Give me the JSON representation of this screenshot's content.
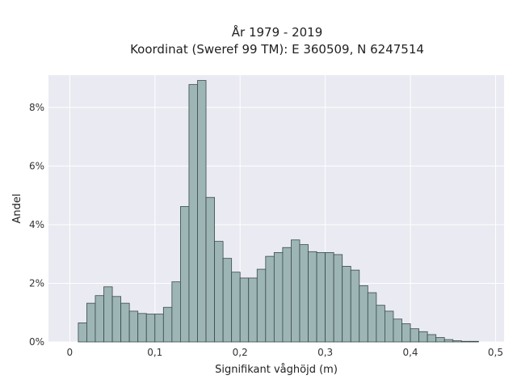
{
  "chart_data": {
    "type": "bar",
    "title": "År 1979 - 2019",
    "subtitle": "Koordinat (Sweref 99 TM): E 360509, N 6247514",
    "xlabel": "Signifikant våghöjd (m)",
    "ylabel": "Andel",
    "xlim": [
      -0.025,
      0.51
    ],
    "ylim": [
      0,
      9.1
    ],
    "grid": true,
    "legend": "none",
    "x_ticks": [
      {
        "value": 0,
        "label": "0"
      },
      {
        "value": 0.1,
        "label": "0,1"
      },
      {
        "value": 0.2,
        "label": "0,2"
      },
      {
        "value": 0.3,
        "label": "0,3"
      },
      {
        "value": 0.4,
        "label": "0,4"
      },
      {
        "value": 0.5,
        "label": "0,5"
      }
    ],
    "y_ticks": [
      {
        "value": 0,
        "label": "0%"
      },
      {
        "value": 2,
        "label": "2%"
      },
      {
        "value": 4,
        "label": "4%"
      },
      {
        "value": 6,
        "label": "6%"
      },
      {
        "value": 8,
        "label": "8%"
      }
    ],
    "bin_width": 0.01,
    "bin_starts": [
      0.01,
      0.02,
      0.03,
      0.04,
      0.05,
      0.06,
      0.07,
      0.08,
      0.09,
      0.1,
      0.11,
      0.12,
      0.13,
      0.14,
      0.15,
      0.16,
      0.17,
      0.18,
      0.19,
      0.2,
      0.21,
      0.22,
      0.23,
      0.24,
      0.25,
      0.26,
      0.27,
      0.28,
      0.29,
      0.3,
      0.31,
      0.32,
      0.33,
      0.34,
      0.35,
      0.36,
      0.37,
      0.38,
      0.39,
      0.4,
      0.41,
      0.42,
      0.43,
      0.44,
      0.45,
      0.46,
      0.47
    ],
    "values": [
      0.65,
      1.32,
      1.58,
      1.88,
      1.55,
      1.32,
      1.05,
      0.97,
      0.95,
      0.95,
      1.18,
      2.05,
      4.62,
      8.78,
      8.92,
      4.93,
      3.43,
      2.85,
      2.38,
      2.18,
      2.18,
      2.48,
      2.92,
      3.05,
      3.22,
      3.48,
      3.32,
      3.08,
      3.05,
      3.05,
      2.98,
      2.58,
      2.45,
      1.92,
      1.68,
      1.25,
      1.05,
      0.78,
      0.62,
      0.45,
      0.35,
      0.25,
      0.15,
      0.08,
      0.04,
      0.02,
      0.02
    ],
    "colors": {
      "bar_fill": "#9db5b5",
      "bar_edge": "#3a4a4a",
      "plot_bg": "#eaeaf2",
      "grid": "#ffffff"
    }
  }
}
